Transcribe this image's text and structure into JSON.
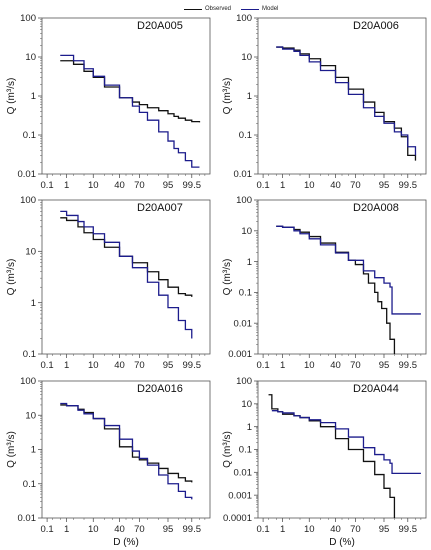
{
  "legend": {
    "observed_label": "Observed",
    "model_label": "Model"
  },
  "colors": {
    "observed": "#111111",
    "model": "#1c1c8c",
    "axis": "#555555"
  },
  "chart_data": [
    {
      "type": "line",
      "title": "D20A005",
      "xlabel": "",
      "ylabel": "Q (m³/s)",
      "x_scale": "normal-probability",
      "y_scale": "log",
      "xticks": [
        0.1,
        1,
        10,
        40,
        70,
        95,
        99.5
      ],
      "ylim": [
        0.01,
        100
      ],
      "series": [
        {
          "name": "Observed",
          "x": [
            0.5,
            2,
            5,
            10,
            20,
            40,
            60,
            70,
            80,
            90,
            95,
            97,
            98,
            99,
            99.5,
            99.8
          ],
          "y": [
            8,
            6.5,
            4.3,
            3.0,
            1.7,
            0.9,
            0.7,
            0.6,
            0.5,
            0.42,
            0.35,
            0.3,
            0.27,
            0.24,
            0.22,
            0.21
          ]
        },
        {
          "name": "Model",
          "x": [
            0.5,
            2,
            5,
            10,
            20,
            40,
            60,
            70,
            80,
            90,
            95,
            97,
            98,
            99,
            99.5,
            99.8
          ],
          "y": [
            11,
            8,
            5,
            3.2,
            1.9,
            0.9,
            0.55,
            0.38,
            0.24,
            0.12,
            0.07,
            0.045,
            0.035,
            0.022,
            0.015,
            0.015
          ]
        }
      ]
    },
    {
      "type": "line",
      "title": "D20A006",
      "xlabel": "",
      "ylabel": "Q (m³/s)",
      "x_scale": "normal-probability",
      "y_scale": "log",
      "xticks": [
        0.1,
        1,
        10,
        40,
        70,
        95,
        99.5
      ],
      "ylim": [
        0.01,
        100
      ],
      "series": [
        {
          "name": "Observed",
          "x": [
            0.5,
            1,
            3,
            5,
            10,
            20,
            40,
            60,
            80,
            90,
            95,
            98,
            99,
            99.5,
            99.8
          ],
          "y": [
            18,
            17,
            15,
            12,
            9,
            6,
            3,
            1.5,
            0.7,
            0.38,
            0.22,
            0.15,
            0.09,
            0.03,
            0.022
          ]
        },
        {
          "name": "Model",
          "x": [
            0.5,
            1,
            3,
            5,
            10,
            20,
            40,
            60,
            80,
            90,
            95,
            98,
            99,
            99.5,
            99.8
          ],
          "y": [
            18,
            16,
            14,
            11,
            7.5,
            4.5,
            2.2,
            1.1,
            0.5,
            0.3,
            0.2,
            0.12,
            0.1,
            0.05,
            0.03
          ]
        }
      ]
    },
    {
      "type": "line",
      "title": "D20A007",
      "xlabel": "",
      "ylabel": "Q (m³/s)",
      "x_scale": "normal-probability",
      "y_scale": "log",
      "xticks": [
        0.1,
        1,
        10,
        40,
        70,
        95,
        99.5
      ],
      "ylim": [
        0.1,
        100
      ],
      "series": [
        {
          "name": "Observed",
          "x": [
            0.5,
            1,
            3,
            5,
            10,
            20,
            40,
            60,
            80,
            90,
            95,
            98,
            99,
            99.5
          ],
          "y": [
            45,
            40,
            30,
            23,
            17,
            12,
            8,
            6,
            4,
            2.8,
            2,
            1.5,
            1.4,
            1.3
          ]
        },
        {
          "name": "Model",
          "x": [
            0.5,
            1,
            3,
            5,
            10,
            20,
            40,
            60,
            80,
            90,
            95,
            98,
            99,
            99.5
          ],
          "y": [
            60,
            50,
            38,
            30,
            22,
            15,
            8,
            4.8,
            2.5,
            1.4,
            0.8,
            0.45,
            0.3,
            0.2
          ]
        }
      ]
    },
    {
      "type": "line",
      "title": "D20A008",
      "xlabel": "",
      "ylabel": "Q (m³/s)",
      "x_scale": "normal-probability",
      "y_scale": "log",
      "xticks": [
        0.1,
        1,
        10,
        40,
        70,
        95,
        99.5
      ],
      "ylim": [
        0.001,
        100
      ],
      "series": [
        {
          "name": "Observed",
          "x": [
            0.5,
            1,
            3,
            5,
            10,
            20,
            40,
            60,
            70,
            80,
            85,
            90,
            92,
            94,
            96,
            97,
            98
          ],
          "y": [
            14,
            13,
            11,
            9,
            6.5,
            4,
            2,
            1.1,
            0.8,
            0.4,
            0.2,
            0.1,
            0.05,
            0.03,
            0.01,
            0.003,
            0.001
          ]
        },
        {
          "name": "Model",
          "x": [
            0.5,
            1,
            3,
            5,
            10,
            20,
            40,
            60,
            80,
            90,
            95,
            97,
            97.5,
            99.5,
            99.9
          ],
          "y": [
            14,
            13,
            10,
            8,
            5.5,
            3.5,
            1.9,
            1.1,
            0.5,
            0.3,
            0.2,
            0.15,
            0.02,
            0.02,
            0.02
          ]
        }
      ]
    },
    {
      "type": "line",
      "title": "D20A016",
      "xlabel": "D (%)",
      "ylabel": "Q (m³/s)",
      "x_scale": "normal-probability",
      "y_scale": "log",
      "xticks": [
        0.1,
        1,
        10,
        40,
        70,
        95,
        99.5
      ],
      "ylim": [
        0.01,
        100
      ],
      "series": [
        {
          "name": "Observed",
          "x": [
            0.5,
            1,
            3,
            5,
            10,
            20,
            40,
            60,
            70,
            80,
            90,
            95,
            98,
            99,
            99.5
          ],
          "y": [
            20,
            19,
            15,
            12,
            8,
            4,
            1.2,
            0.6,
            0.5,
            0.4,
            0.28,
            0.2,
            0.15,
            0.12,
            0.11
          ]
        },
        {
          "name": "Model",
          "x": [
            0.5,
            1,
            3,
            5,
            10,
            20,
            40,
            60,
            70,
            80,
            90,
            95,
            98,
            99,
            99.5
          ],
          "y": [
            22,
            19,
            14,
            11,
            8,
            5,
            2,
            0.9,
            0.55,
            0.35,
            0.18,
            0.1,
            0.06,
            0.04,
            0.035
          ]
        }
      ]
    },
    {
      "type": "line",
      "title": "D20A044",
      "xlabel": "D (%)",
      "ylabel": "Q (m³/s)",
      "x_scale": "normal-probability",
      "y_scale": "log",
      "xticks": [
        0.1,
        1,
        10,
        40,
        70,
        95,
        99.5
      ],
      "ylim": [
        0.0001,
        100
      ],
      "series": [
        {
          "name": "Observed",
          "x": [
            0.2,
            0.3,
            0.6,
            1,
            3,
            5,
            10,
            20,
            40,
            60,
            80,
            90,
            95,
            97,
            98
          ],
          "y": [
            25,
            6,
            4.5,
            3.5,
            3,
            2.5,
            1.8,
            1,
            0.3,
            0.1,
            0.03,
            0.008,
            0.002,
            0.0008,
            0.0001
          ]
        },
        {
          "name": "Model",
          "x": [
            0.3,
            0.6,
            1,
            3,
            5,
            10,
            20,
            40,
            60,
            80,
            90,
            95,
            97,
            97.5,
            99.5,
            99.9
          ],
          "y": [
            5,
            4.5,
            4,
            3,
            2.5,
            2,
            1.5,
            0.8,
            0.35,
            0.12,
            0.06,
            0.035,
            0.025,
            0.009,
            0.009,
            0.009
          ]
        }
      ]
    }
  ]
}
